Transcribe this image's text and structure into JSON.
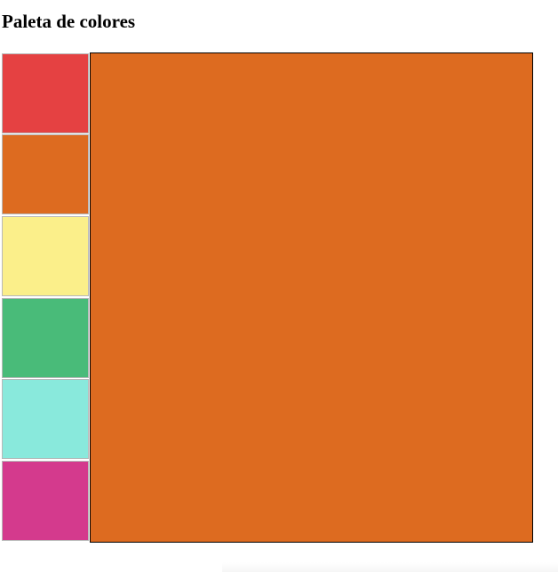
{
  "page": {
    "title": "Paleta de colores"
  },
  "palette": {
    "swatches": [
      {
        "name": "red",
        "color": "#e54142"
      },
      {
        "name": "orange",
        "color": "#dd6b20"
      },
      {
        "name": "yellow",
        "color": "#fbef8a"
      },
      {
        "name": "green",
        "color": "#49bb79"
      },
      {
        "name": "turquoise",
        "color": "#89e9dc"
      },
      {
        "name": "pink",
        "color": "#d43a8d"
      }
    ],
    "selected_index": 1
  },
  "preview": {
    "color": "#dd6b20"
  }
}
